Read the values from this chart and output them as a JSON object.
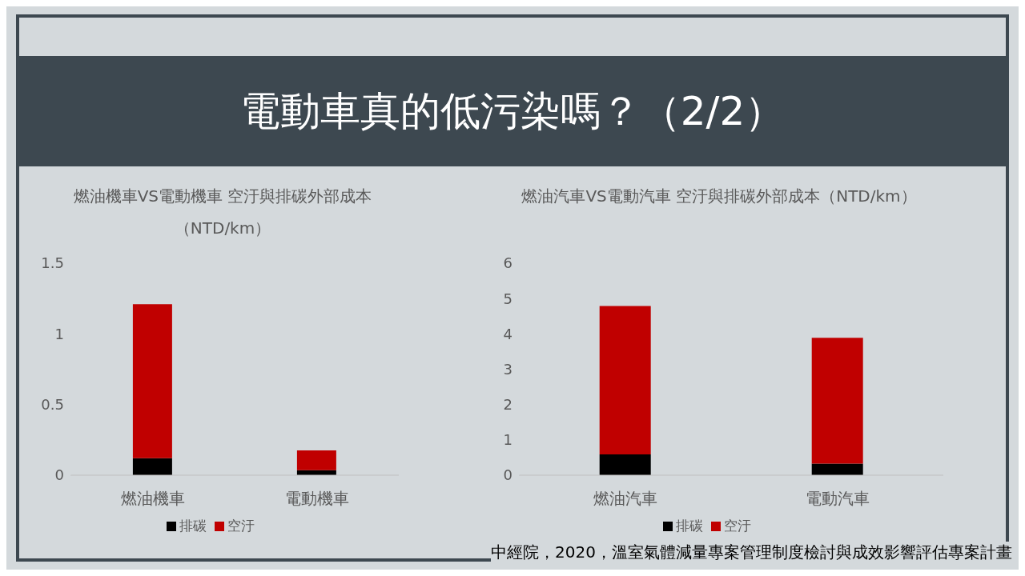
{
  "chart_data": [
    {
      "type": "bar",
      "title": "燃油機車VS電動機車 空汙與排碳外部成本（NTD/km）",
      "categories": [
        "燃油機車",
        "電動機車"
      ],
      "stacked": true,
      "ylim": [
        0,
        1.5
      ],
      "yticks": [
        0,
        0.5,
        1,
        1.5
      ],
      "legend": "bottom",
      "annotations": [
        "電動車真的低污染嗎？（2/2）"
      ],
      "series": [
        {
          "name": "排碳",
          "color": "#000000",
          "values": [
            0.12,
            0.036
          ]
        },
        {
          "name": "空汙",
          "color": "#c00000",
          "values": [
            1.09,
            0.14
          ]
        }
      ]
    },
    {
      "type": "bar",
      "title": "燃油汽車VS電動汽車 空汙與排碳外部成本（NTD/km）",
      "categories": [
        "燃油汽車",
        "電動汽車"
      ],
      "stacked": true,
      "ylim": [
        0,
        6
      ],
      "yticks": [
        0,
        1,
        2,
        3,
        4,
        5,
        6
      ],
      "legend": "bottom",
      "annotations": [
        "中經院，2020，溫室氣體減量專案管理制度檢討與成效影響評估專案計畫"
      ],
      "series": [
        {
          "name": "排碳",
          "color": "#000000",
          "values": [
            0.59,
            0.33
          ]
        },
        {
          "name": "空汙",
          "color": "#c00000",
          "values": [
            4.2,
            3.56
          ]
        }
      ]
    }
  ]
}
